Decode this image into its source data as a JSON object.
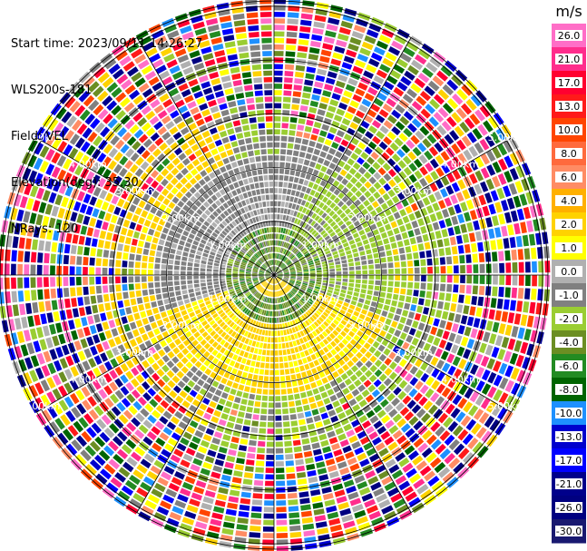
{
  "header": {
    "start_time": "Start time: 2023/09/11 14:26:27",
    "site": "WLS200s-181",
    "field": "Field: VEL",
    "elevation": "Elevation(deg): 35.30",
    "nrays": "NRays: 120"
  },
  "chart_data": {
    "type": "heatmap",
    "projection": "polar-ppi",
    "field": "VEL",
    "nrays": 120,
    "range_rings_km": [
      1.0,
      2.0,
      3.0,
      4.0,
      5.0
    ],
    "ring_labels": [
      "1.00km",
      "2.00km",
      "3.00km",
      "4.00km",
      "5.00km"
    ],
    "max_range_km": 5.1,
    "colorbar": {
      "unit": "m/s",
      "ticks": [
        "26.0",
        "21.0",
        "17.0",
        "13.0",
        "10.0",
        "8.0",
        "6.0",
        "4.0",
        "2.0",
        "1.0",
        "0.0",
        "-1.0",
        "-2.0",
        "-4.0",
        "-6.0",
        "-8.0",
        "-10.0",
        "-13.0",
        "-17.0",
        "-21.0",
        "-26.0",
        "-30.0"
      ],
      "colors": [
        "#ff6ec7",
        "#ff2d8c",
        "#ff0030",
        "#ff1a1a",
        "#ff4500",
        "#ff6a3d",
        "#ff8c64",
        "#ffb000",
        "#ffd200",
        "#ffff00",
        "#b0b0b0",
        "#808080",
        "#9acd32",
        "#6b8e23",
        "#228b22",
        "#006400",
        "#1e90ff",
        "#0000cd",
        "#0000ff",
        "#00008b",
        "#000080",
        "#191970"
      ]
    },
    "near_field_pattern": {
      "inner_green_radius_km": 0.9,
      "yellow_arc_radius_km": 2.2,
      "grey_ring_radius_km": 2.6
    }
  }
}
